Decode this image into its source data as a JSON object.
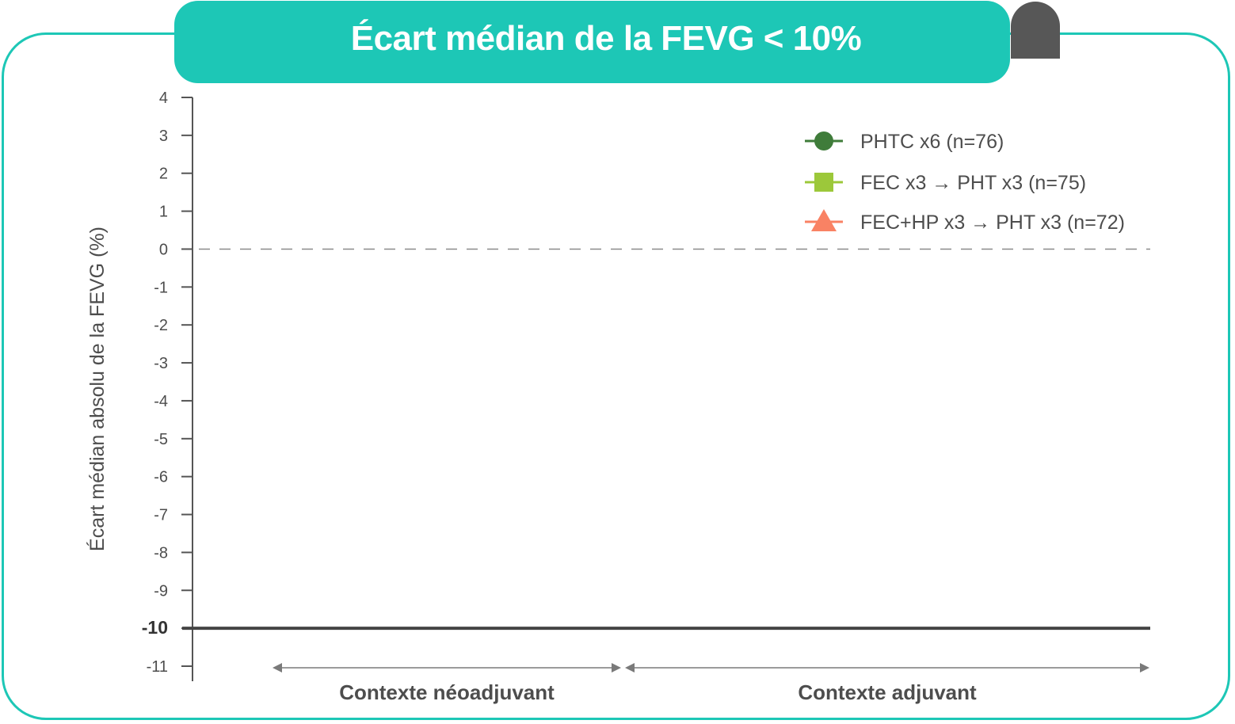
{
  "colors": {
    "accent": "#1dc7b6",
    "dark_tab": "#575757",
    "axis": "#555555",
    "series_phtc": "#3f7c3a",
    "series_fec": "#9cc83a",
    "series_fechp": "#f98264"
  },
  "chart_data": {
    "type": "line",
    "title": "Écart médian de la FEVG < 10%",
    "ylabel": "Écart médian absolu de la FEVG (%)",
    "xlabel": "",
    "ylim": [
      -11,
      4
    ],
    "yticks": [
      "4",
      "3",
      "2",
      "1",
      "0",
      "-1",
      "-2",
      "-3",
      "-4",
      "-5",
      "-6",
      "-7",
      "-8",
      "-9",
      "-10",
      "-11"
    ],
    "yticks_values": [
      4,
      3,
      2,
      1,
      0,
      -1,
      -2,
      -3,
      -4,
      -5,
      -6,
      -7,
      -8,
      -9,
      -10,
      -11
    ],
    "reference_lines": [
      {
        "y": 0,
        "style": "dashed"
      },
      {
        "y": -10,
        "style": "solid-bold"
      }
    ],
    "grid": false,
    "legend_position": "top-right",
    "series": [
      {
        "name": "PHTC x6 (n=76)",
        "marker": "circle",
        "color": "#3f7c3a",
        "values": []
      },
      {
        "name": "FEC x3 → PHT x3 (n=75)",
        "marker": "square",
        "color": "#9cc83a",
        "values": []
      },
      {
        "name": "FEC+HP x3 → PHT x3 (n=72)",
        "marker": "triangle",
        "color": "#f98264",
        "values": []
      }
    ],
    "contexts": [
      {
        "label": "Contexte néoadjuvant"
      },
      {
        "label": "Contexte adjuvant"
      }
    ]
  }
}
